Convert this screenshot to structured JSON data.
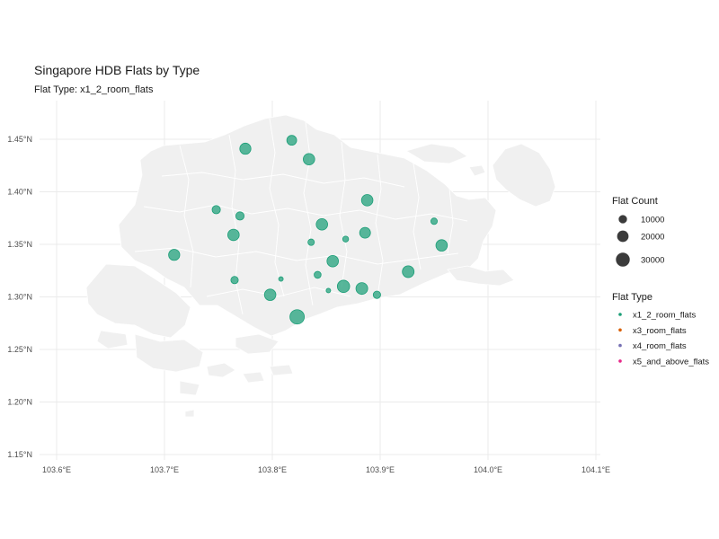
{
  "title": "Singapore HDB Flats by Type",
  "subtitle": "Flat Type: x1_2_room_flats",
  "chart_data": {
    "type": "scatter",
    "map": "Singapore",
    "title": "Singapore HDB Flats by Type",
    "subtitle": "Flat Type: x1_2_room_flats",
    "xlim": [
      103.6,
      104.1
    ],
    "ylim": [
      1.15,
      1.45
    ],
    "x_ticks": [
      "103.6°E",
      "103.7°E",
      "103.8°E",
      "103.9°E",
      "104.0°E",
      "104.1°E"
    ],
    "y_ticks": [
      "1.15°N",
      "1.20°N",
      "1.25°N",
      "1.30°N",
      "1.35°N",
      "1.40°N",
      "1.45°N"
    ],
    "grid": true,
    "legend_position": "right",
    "size_legend": {
      "title": "Flat Count",
      "entries": [
        {
          "label": "10000",
          "value": 10000
        },
        {
          "label": "20000",
          "value": 20000
        },
        {
          "label": "30000",
          "value": 30000
        }
      ]
    },
    "color_legend": {
      "title": "Flat Type",
      "entries": [
        {
          "label": "x1_2_room_flats",
          "color": "#1b9e77"
        },
        {
          "label": "x3_room_flats",
          "color": "#d95f02"
        },
        {
          "label": "x4_room_flats",
          "color": "#7570b3"
        },
        {
          "label": "x5_and_above_flats",
          "color": "#e7298a"
        }
      ]
    },
    "series": [
      {
        "name": "x1_2_room_flats",
        "color": "#1b9e77",
        "points": [
          {
            "lon": 103.818,
            "lat": 1.449,
            "count": 14000
          },
          {
            "lon": 103.775,
            "lat": 1.441,
            "count": 18000
          },
          {
            "lon": 103.834,
            "lat": 1.431,
            "count": 19000
          },
          {
            "lon": 103.888,
            "lat": 1.392,
            "count": 19000
          },
          {
            "lon": 103.748,
            "lat": 1.383,
            "count": 10000
          },
          {
            "lon": 103.77,
            "lat": 1.377,
            "count": 10000
          },
          {
            "lon": 103.846,
            "lat": 1.369,
            "count": 19000
          },
          {
            "lon": 103.95,
            "lat": 1.372,
            "count": 6000
          },
          {
            "lon": 103.764,
            "lat": 1.359,
            "count": 19000
          },
          {
            "lon": 103.886,
            "lat": 1.361,
            "count": 17000
          },
          {
            "lon": 103.836,
            "lat": 1.352,
            "count": 6000
          },
          {
            "lon": 103.868,
            "lat": 1.355,
            "count": 5000
          },
          {
            "lon": 103.957,
            "lat": 1.349,
            "count": 19000
          },
          {
            "lon": 103.709,
            "lat": 1.34,
            "count": 18000
          },
          {
            "lon": 103.856,
            "lat": 1.334,
            "count": 19000
          },
          {
            "lon": 103.842,
            "lat": 1.321,
            "count": 7000
          },
          {
            "lon": 103.926,
            "lat": 1.324,
            "count": 20000
          },
          {
            "lon": 103.765,
            "lat": 1.316,
            "count": 8000
          },
          {
            "lon": 103.808,
            "lat": 1.317,
            "count": 3000
          },
          {
            "lon": 103.866,
            "lat": 1.31,
            "count": 22000
          },
          {
            "lon": 103.883,
            "lat": 1.308,
            "count": 20000
          },
          {
            "lon": 103.852,
            "lat": 1.306,
            "count": 3000
          },
          {
            "lon": 103.798,
            "lat": 1.302,
            "count": 19000
          },
          {
            "lon": 103.897,
            "lat": 1.302,
            "count": 8000
          },
          {
            "lon": 103.823,
            "lat": 1.281,
            "count": 30000
          }
        ]
      }
    ]
  }
}
